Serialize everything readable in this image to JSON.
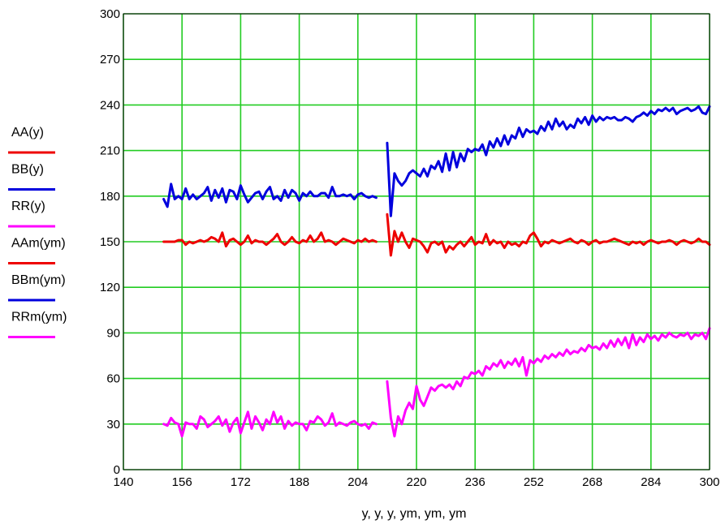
{
  "chart_data": {
    "type": "line",
    "title": "",
    "xlabel": "y, y, y, ym, ym, ym",
    "ylabel": "",
    "xlim": [
      140,
      300
    ],
    "ylim": [
      0,
      300
    ],
    "xticks": [
      140,
      156,
      172,
      188,
      204,
      220,
      236,
      252,
      268,
      284,
      300
    ],
    "yticks": [
      0,
      30,
      60,
      90,
      120,
      150,
      180,
      210,
      240,
      270,
      300
    ],
    "grid": true,
    "grid_color": "#22cc22",
    "legend_position": "left",
    "series": [
      {
        "name": "AA(y)",
        "color": "#ee0000",
        "x": [
          151,
          152,
          153,
          154,
          155,
          156,
          157,
          158,
          159,
          160,
          161,
          162,
          163,
          164,
          165,
          166,
          167,
          168,
          169,
          170,
          171,
          172,
          173,
          174,
          175,
          176,
          177,
          178,
          179,
          180,
          181,
          182,
          183,
          184,
          185,
          186,
          187,
          188,
          189,
          190,
          191,
          192,
          193,
          194,
          195,
          196,
          197,
          198,
          199,
          200,
          201,
          202,
          203,
          204,
          205,
          206,
          207,
          208,
          209
        ],
        "y": [
          150,
          150,
          150,
          150,
          151,
          151,
          148,
          150,
          149,
          150,
          151,
          150,
          151,
          153,
          152,
          150,
          156,
          147,
          151,
          152,
          150,
          148,
          150,
          154,
          149,
          151,
          150,
          150,
          148,
          150,
          152,
          155,
          150,
          148,
          150,
          153,
          150,
          149,
          151,
          150,
          154,
          150,
          152,
          156,
          150,
          151,
          150,
          148,
          150,
          152,
          151,
          150,
          149,
          151,
          150,
          152,
          150,
          151,
          150
        ]
      },
      {
        "name": "BB(y)",
        "color": "#0000dd",
        "x": [
          151,
          152,
          153,
          154,
          155,
          156,
          157,
          158,
          159,
          160,
          161,
          162,
          163,
          164,
          165,
          166,
          167,
          168,
          169,
          170,
          171,
          172,
          173,
          174,
          175,
          176,
          177,
          178,
          179,
          180,
          181,
          182,
          183,
          184,
          185,
          186,
          187,
          188,
          189,
          190,
          191,
          192,
          193,
          194,
          195,
          196,
          197,
          198,
          199,
          200,
          201,
          202,
          203,
          204,
          205,
          206,
          207,
          208,
          209
        ],
        "y": [
          178,
          173,
          188,
          178,
          180,
          178,
          185,
          178,
          181,
          178,
          180,
          182,
          186,
          177,
          184,
          179,
          185,
          176,
          184,
          183,
          178,
          187,
          181,
          176,
          179,
          182,
          183,
          178,
          183,
          186,
          178,
          180,
          177,
          184,
          179,
          184,
          182,
          177,
          182,
          180,
          183,
          180,
          180,
          182,
          182,
          179,
          186,
          180,
          180,
          181,
          180,
          181,
          178,
          181,
          182,
          180,
          179,
          180,
          179
        ]
      },
      {
        "name": "RR(y)",
        "color": "#ff00ff",
        "x": [
          151,
          152,
          153,
          154,
          155,
          156,
          157,
          158,
          159,
          160,
          161,
          162,
          163,
          164,
          165,
          166,
          167,
          168,
          169,
          170,
          171,
          172,
          173,
          174,
          175,
          176,
          177,
          178,
          179,
          180,
          181,
          182,
          183,
          184,
          185,
          186,
          187,
          188,
          189,
          190,
          191,
          192,
          193,
          194,
          195,
          196,
          197,
          198,
          199,
          200,
          201,
          202,
          203,
          204,
          205,
          206,
          207,
          208,
          209
        ],
        "y": [
          30,
          29,
          34,
          31,
          30,
          22,
          31,
          30,
          30,
          27,
          35,
          33,
          28,
          30,
          32,
          35,
          29,
          33,
          25,
          31,
          34,
          24,
          31,
          38,
          27,
          35,
          31,
          26,
          33,
          30,
          38,
          31,
          35,
          27,
          32,
          29,
          31,
          30,
          30,
          26,
          32,
          31,
          35,
          33,
          29,
          31,
          37,
          29,
          31,
          30,
          29,
          31,
          32,
          30,
          29,
          30,
          27,
          31,
          30
        ]
      },
      {
        "name": "AAm(ym)",
        "color": "#ee0000",
        "x": [
          212,
          213,
          214,
          215,
          216,
          217,
          218,
          219,
          220,
          221,
          222,
          223,
          224,
          225,
          226,
          227,
          228,
          229,
          230,
          231,
          232,
          233,
          234,
          235,
          236,
          237,
          238,
          239,
          240,
          241,
          242,
          243,
          244,
          245,
          246,
          247,
          248,
          249,
          250,
          251,
          252,
          253,
          254,
          255,
          256,
          257,
          258,
          259,
          260,
          261,
          262,
          263,
          264,
          265,
          266,
          267,
          268,
          269,
          270,
          271,
          272,
          273,
          274,
          275,
          276,
          277,
          278,
          279,
          280,
          281,
          282,
          283,
          284,
          285,
          286,
          287,
          288,
          289,
          290,
          291,
          292,
          293,
          294,
          295,
          296,
          297,
          298,
          299,
          300
        ],
        "y": [
          168,
          141,
          157,
          150,
          156,
          150,
          146,
          152,
          151,
          150,
          147,
          143,
          149,
          150,
          148,
          150,
          143,
          147,
          145,
          148,
          150,
          147,
          150,
          153,
          148,
          150,
          149,
          155,
          148,
          151,
          149,
          150,
          146,
          150,
          148,
          149,
          147,
          150,
          149,
          154,
          156,
          152,
          147,
          150,
          149,
          151,
          150,
          149,
          150,
          151,
          152,
          150,
          149,
          151,
          150,
          148,
          150,
          151,
          149,
          150,
          150,
          151,
          152,
          151,
          150,
          149,
          148,
          150,
          149,
          150,
          148,
          150,
          151,
          150,
          149,
          150,
          150,
          151,
          150,
          148,
          150,
          151,
          150,
          149,
          150,
          152,
          150,
          150,
          148
        ]
      },
      {
        "name": "BBm(ym)",
        "color": "#0000dd",
        "x": [
          212,
          213,
          214,
          215,
          216,
          217,
          218,
          219,
          220,
          221,
          222,
          223,
          224,
          225,
          226,
          227,
          228,
          229,
          230,
          231,
          232,
          233,
          234,
          235,
          236,
          237,
          238,
          239,
          240,
          241,
          242,
          243,
          244,
          245,
          246,
          247,
          248,
          249,
          250,
          251,
          252,
          253,
          254,
          255,
          256,
          257,
          258,
          259,
          260,
          261,
          262,
          263,
          264,
          265,
          266,
          267,
          268,
          269,
          270,
          271,
          272,
          273,
          274,
          275,
          276,
          277,
          278,
          279,
          280,
          281,
          282,
          283,
          284,
          285,
          286,
          287,
          288,
          289,
          290,
          291,
          292,
          293,
          294,
          295,
          296,
          297,
          298,
          299,
          300
        ],
        "y": [
          215,
          167,
          195,
          190,
          187,
          190,
          195,
          197,
          195,
          193,
          198,
          193,
          200,
          198,
          203,
          196,
          208,
          197,
          209,
          199,
          208,
          203,
          211,
          209,
          211,
          210,
          214,
          207,
          216,
          212,
          218,
          213,
          220,
          214,
          220,
          218,
          225,
          219,
          224,
          222,
          223,
          221,
          226,
          223,
          229,
          224,
          231,
          226,
          229,
          224,
          227,
          225,
          231,
          228,
          232,
          227,
          233,
          229,
          232,
          230,
          232,
          231,
          232,
          230,
          230,
          232,
          231,
          229,
          232,
          233,
          235,
          233,
          236,
          234,
          237,
          236,
          238,
          236,
          238,
          234,
          236,
          237,
          238,
          236,
          237,
          239,
          235,
          234,
          239
        ]
      },
      {
        "name": "RRm(ym)",
        "color": "#ff00ff",
        "x": [
          212,
          213,
          214,
          215,
          216,
          217,
          218,
          219,
          220,
          221,
          222,
          223,
          224,
          225,
          226,
          227,
          228,
          229,
          230,
          231,
          232,
          233,
          234,
          235,
          236,
          237,
          238,
          239,
          240,
          241,
          242,
          243,
          244,
          245,
          246,
          247,
          248,
          249,
          250,
          251,
          252,
          253,
          254,
          255,
          256,
          257,
          258,
          259,
          260,
          261,
          262,
          263,
          264,
          265,
          266,
          267,
          268,
          269,
          270,
          271,
          272,
          273,
          274,
          275,
          276,
          277,
          278,
          279,
          280,
          281,
          282,
          283,
          284,
          285,
          286,
          287,
          288,
          289,
          290,
          291,
          292,
          293,
          294,
          295,
          296,
          297,
          298,
          299,
          300
        ],
        "y": [
          58,
          34,
          22,
          35,
          30,
          39,
          44,
          40,
          55,
          46,
          42,
          48,
          54,
          52,
          55,
          56,
          54,
          56,
          53,
          58,
          55,
          61,
          60,
          64,
          63,
          65,
          62,
          68,
          66,
          70,
          68,
          72,
          67,
          71,
          69,
          73,
          68,
          74,
          62,
          72,
          70,
          73,
          71,
          75,
          73,
          76,
          74,
          77,
          75,
          79,
          76,
          78,
          77,
          80,
          78,
          82,
          80,
          81,
          79,
          83,
          80,
          85,
          81,
          86,
          82,
          87,
          80,
          89,
          82,
          87,
          84,
          89,
          86,
          88,
          85,
          89,
          87,
          90,
          88,
          87,
          89,
          88,
          90,
          86,
          89,
          88,
          90,
          86,
          93
        ]
      }
    ]
  }
}
